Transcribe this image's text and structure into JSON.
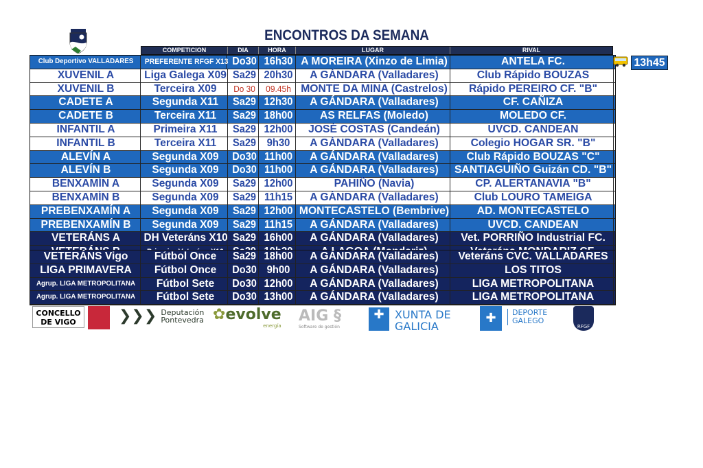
{
  "title": "ENCONTROS DA SEMANA",
  "headers": [
    "COMPETICION",
    "DIA",
    "HORA",
    "LUGAR",
    "RIVAL"
  ],
  "departure": {
    "icon": "bus-icon",
    "time": "13h45"
  },
  "colors": {
    "blue": "#1f68bd",
    "navy": "#14245e",
    "white_text": "#2a4aa5",
    "header": "#1f2e55"
  },
  "rows": [
    {
      "team": "Club Deportivo VALLADARES",
      "comp": "PREFERENTE RFGF X13",
      "dia": "Do30",
      "hora": "16h30",
      "lugar": "A MOREIRA (Xinzo de Limia)",
      "rival": "ANTELA FC."
    },
    {
      "team": "XUVENIL A",
      "comp": "Liga Galega X09",
      "dia": "Sa29",
      "hora": "20h30",
      "lugar": "A GÁNDARA (Valladares)",
      "rival": "Club Rápido BOUZAS"
    },
    {
      "team": "XUVENIL B",
      "comp": "Terceira X09",
      "dia": "Do 30",
      "hora": "09.45h",
      "lugar": "MONTE DA MINA (Castrelos)",
      "rival": "Rápido PEREIRO CF. \"B\""
    },
    {
      "team": "CADETE A",
      "comp": "Segunda X11",
      "dia": "Sa29",
      "hora": "12h30",
      "lugar": "A GÁNDARA (Valladares)",
      "rival": "CF. CAÑIZA"
    },
    {
      "team": "CADETE B",
      "comp": "Terceira X11",
      "dia": "Sa29",
      "hora": "18h00",
      "lugar": "AS RELFAS (Moledo)",
      "rival": "MOLEDO CF."
    },
    {
      "team": "INFANTIL A",
      "comp": "Primeira X11",
      "dia": "Sa29",
      "hora": "12h00",
      "lugar": "JOSÉ COSTAS (Candeán)",
      "rival": "UVCD. CANDEAN"
    },
    {
      "team": "INFANTIL B",
      "comp": "Terceira X11",
      "dia": "Sa29",
      "hora": "9h30",
      "lugar": "A GÁNDARA (Valladares)",
      "rival": "Colegio HOGAR SR. \"B\""
    },
    {
      "team": "ALEVÍN A",
      "comp": "Segunda X09",
      "dia": "Do30",
      "hora": "11h00",
      "lugar": "A GÁNDARA (Valladares)",
      "rival": "Club Rápido BOUZAS \"C\""
    },
    {
      "team": "ALEVÍN B",
      "comp": "Segunda X09",
      "dia": "Do30",
      "hora": "11h00",
      "lugar": "A GÁNDARA (Valladares)",
      "rival": "SANTIAGUIÑO Guizán CD. \"B\""
    },
    {
      "team": "BENXAMÍN A",
      "comp": "Segunda X09",
      "dia": "Sa29",
      "hora": "12h00",
      "lugar": "PAHIÑO (Navia)",
      "rival": "CP. ALERTANAVIA \"B\""
    },
    {
      "team": "BENXAMÍN B",
      "comp": "Segunda X09",
      "dia": "Sa29",
      "hora": "11h15",
      "lugar": "A GÁNDARA (Valladares)",
      "rival": "Club LOURO TAMEIGA"
    },
    {
      "team": "PREBENXAMÍN A",
      "comp": "Segunda X09",
      "dia": "Sa29",
      "hora": "12h00",
      "lugar": "MONTECASTELO (Bembrive)",
      "rival": "AD. MONTECASTELO"
    },
    {
      "team": "PREBENXAMÍN B",
      "comp": "Segunda X09",
      "dia": "Sa29",
      "hora": "11h15",
      "lugar": "A GÁNDARA (Valladares)",
      "rival": "UVCD. CANDEAN"
    },
    {
      "team": "VETERÁNS A",
      "comp": "DH Veteráns X10",
      "dia": "Sa29",
      "hora": "16h00",
      "lugar": "A GÁNDARA (Valladares)",
      "rival": "Vet. PORRIÑO Industrial FC."
    },
    {
      "team": "VETERÁNS B",
      "comp": "Primeira Veteráns X10",
      "dia": "Sa29",
      "hora": "19h30",
      "lugar": "A LAGOA (Mondariz)",
      "rival": "Veteráns MONDARIZ CF."
    }
  ],
  "rows2": [
    {
      "team": "VETERÁNS Vigo",
      "comp": "Fútbol Once",
      "dia": "Sa29",
      "hora": "18h00",
      "lugar": "A GÁNDARA (Valladares)",
      "rival": "Veteráns CVC. VALLADARES"
    },
    {
      "team": "LIGA PRIMAVERA",
      "comp": "Fútbol Once",
      "dia": "Do30",
      "hora": "9h00",
      "lugar": "A GÁNDARA (Valladares)",
      "rival": "LOS TITOS"
    },
    {
      "team": "Agrup. LIGA METROPOLITANA",
      "comp": "Fútbol Sete",
      "dia": "Do30",
      "hora": "12h00",
      "lugar": "A GÁNDARA (Valladares)",
      "rival": "LIGA METROPOLITANA"
    },
    {
      "team": "Agrup. LIGA METROPOLITANA",
      "comp": "Fútbol Sete",
      "dia": "Do30",
      "hora": "13h00",
      "lugar": "A GÁNDARA (Valladares)",
      "rival": "LIGA METROPOLITANA"
    }
  ],
  "sponsors": {
    "vigo": "CONCELLO DE VIGO",
    "deputacion": "Deputación Pontevedra",
    "evolve": "evolve",
    "evolve_sub": "energía",
    "aig": "AIG",
    "aig_sub": "Software de gestión",
    "xunta": "XUNTA DE GALICIA",
    "deporte": "DEPORTE GALEGO",
    "rfgf": "RFGF"
  }
}
